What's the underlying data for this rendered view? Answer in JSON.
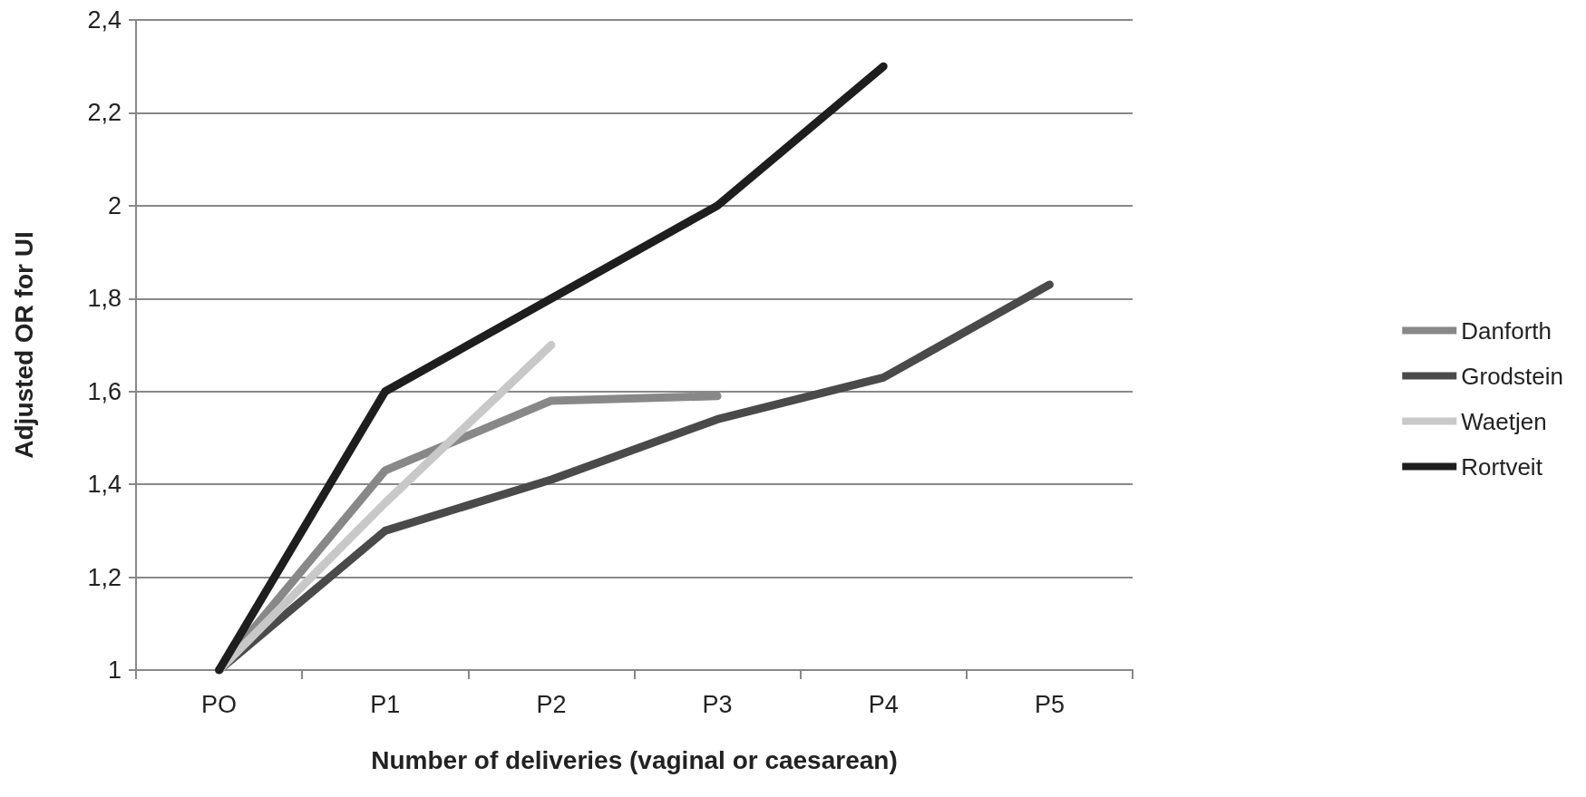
{
  "chart_data": {
    "type": "line",
    "xlabel": "Number of deliveries (vaginal or caesarean)",
    "ylabel": "Adjusted OR for UI",
    "categories": [
      "PO",
      "P1",
      "P2",
      "P3",
      "P4",
      "P5"
    ],
    "series": [
      {
        "name": "Danforth",
        "color": "#888888",
        "values": [
          1,
          1.43,
          1.58,
          1.59,
          null,
          null
        ]
      },
      {
        "name": "Grodstein",
        "color": "#4a4a4a",
        "values": [
          1,
          1.3,
          1.41,
          1.54,
          1.63,
          1.83
        ]
      },
      {
        "name": "Waetjen",
        "color": "#c8c8c8",
        "values": [
          1,
          1.36,
          1.7,
          null,
          null,
          null
        ]
      },
      {
        "name": "Rortveit",
        "color": "#1e1e1e",
        "values": [
          1,
          1.6,
          1.8,
          2.0,
          2.3,
          null
        ]
      }
    ],
    "ylim": [
      1,
      2.4
    ],
    "yticks": [
      1,
      {
        "value": 1.2,
        "label": "1,2"
      },
      {
        "value": 1.4,
        "label": "1,4"
      },
      {
        "value": 1.6,
        "label": "1,6"
      },
      {
        "value": 1.8,
        "label": "1,8"
      },
      2,
      {
        "value": 2.2,
        "label": "2,2"
      },
      {
        "value": 2.4,
        "label": "2,4"
      }
    ],
    "grid": "y",
    "legend": "right",
    "marker": "none",
    "line_style": "solid"
  }
}
